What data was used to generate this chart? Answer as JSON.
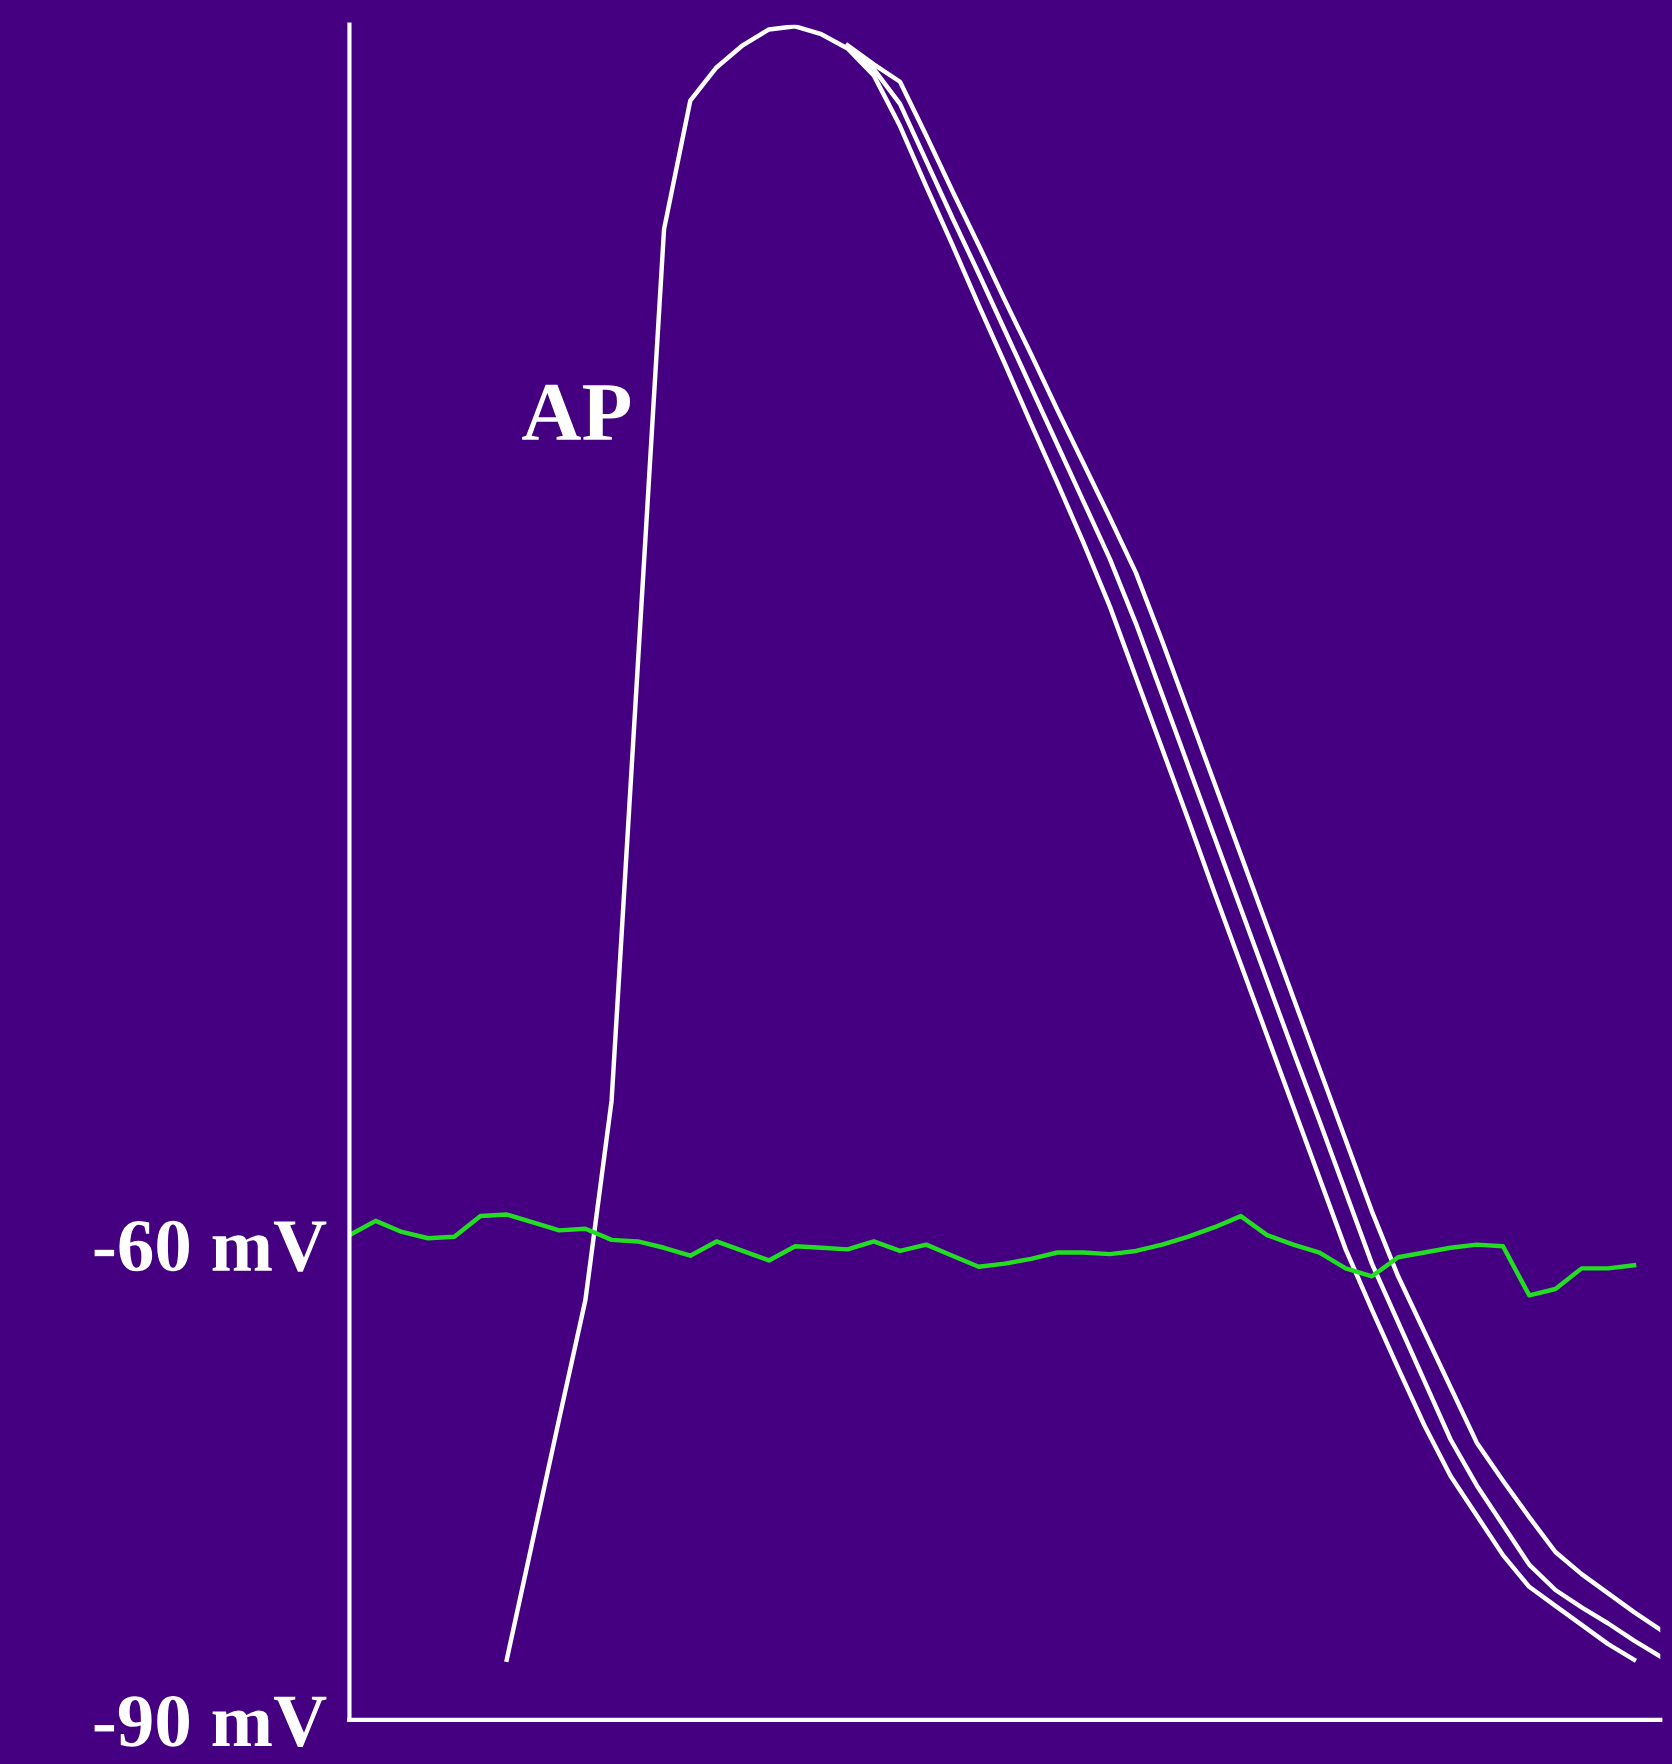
{
  "chart_data": {
    "type": "line",
    "categories": [
      null,
      null,
      null,
      null,
      null,
      null,
      null,
      null,
      null,
      null,
      null,
      null,
      null,
      null,
      null,
      null,
      null,
      null,
      null,
      null,
      null,
      null,
      null,
      null,
      null,
      null,
      null,
      null,
      null,
      null,
      null,
      null,
      null,
      null,
      null,
      null,
      null,
      null,
      null,
      null,
      null,
      null,
      null,
      null,
      null,
      null,
      null,
      null,
      null,
      null,
      null
    ],
    "ylim": [
      -90,
      17
    ],
    "yticks": [
      {
        "value": -60,
        "label": "-60 mV"
      },
      {
        "value": -90,
        "label": "-90 mV"
      }
    ],
    "tick_labels": "y",
    "grid": false,
    "legend": false,
    "marker": "none",
    "line_style": "solid",
    "annotations": [
      "AP"
    ],
    "series": [
      {
        "color": "#ffffff",
        "values": [
          null,
          null,
          null,
          null,
          null,
          null,
          -86.2,
          -78.6,
          -71.0,
          -63.5,
          -50.9,
          -23.4,
          4.1,
          12.2,
          14.3,
          15.7,
          16.7,
          16.9,
          16.4,
          15.5,
          13.8,
          10.6,
          6.8,
          3.1,
          -0.7,
          -4.4,
          -8.2,
          -11.9,
          -15.7,
          -19.7,
          -24.2,
          -28.7,
          -33.2,
          -37.8,
          -42.3,
          -46.8,
          -51.3,
          -55.8,
          -60.3,
          -64.1,
          -67.8,
          -71.4,
          -74.6,
          -77.1,
          -79.6,
          -81.6,
          -82.8,
          -84.0,
          -85.2,
          -86.2,
          null
        ]
      },
      {
        "color": "#ffffff",
        "values": [
          null,
          null,
          null,
          null,
          null,
          null,
          null,
          null,
          null,
          null,
          null,
          null,
          null,
          null,
          null,
          null,
          null,
          null,
          null,
          15.6,
          14.2,
          12.0,
          8.4,
          4.8,
          1.3,
          -2.3,
          -5.9,
          -9.5,
          -13.1,
          -16.7,
          -20.8,
          -25.3,
          -29.8,
          -34.3,
          -38.8,
          -43.3,
          -47.8,
          -52.2,
          -56.7,
          -61.2,
          -64.9,
          -68.6,
          -72.3,
          -75.2,
          -77.7,
          -80.2,
          -81.8,
          -82.9,
          -83.9,
          -85.0,
          -86.0
        ]
      },
      {
        "color": "#ffffff",
        "values": [
          null,
          null,
          null,
          null,
          null,
          null,
          null,
          null,
          null,
          null,
          null,
          null,
          null,
          null,
          null,
          null,
          null,
          null,
          null,
          15.7,
          14.5,
          13.4,
          10.0,
          6.5,
          3.1,
          -0.4,
          -3.8,
          -7.3,
          -10.7,
          -14.1,
          -17.6,
          -21.9,
          -26.4,
          -30.9,
          -35.4,
          -39.9,
          -44.4,
          -48.9,
          -53.4,
          -57.9,
          -62.0,
          -65.5,
          -69.0,
          -72.5,
          -74.9,
          -77.2,
          -79.4,
          -80.8,
          -82.0,
          -83.2,
          -84.3
        ]
      },
      {
        "color": "#22dd22",
        "values": [
          -59.4,
          -58.5,
          -59.2,
          -59.6,
          -59.5,
          -58.2,
          -58.1,
          -58.6,
          -59.1,
          -59.0,
          -59.7,
          -59.8,
          -60.2,
          -60.7,
          -59.8,
          -60.4,
          -61.0,
          -60.1,
          -60.2,
          -60.3,
          -59.8,
          -60.4,
          -60.0,
          -60.7,
          -61.4,
          -61.2,
          -60.9,
          -60.5,
          -60.5,
          -60.6,
          -60.4,
          -60.0,
          -59.5,
          -58.9,
          -58.2,
          -59.4,
          -60.0,
          -60.5,
          -61.5,
          -62.0,
          -60.8,
          -60.5,
          -60.2,
          -60.0,
          -60.1,
          -63.2,
          -62.8,
          -61.5,
          -61.5,
          -61.3,
          null
        ]
      }
    ]
  }
}
